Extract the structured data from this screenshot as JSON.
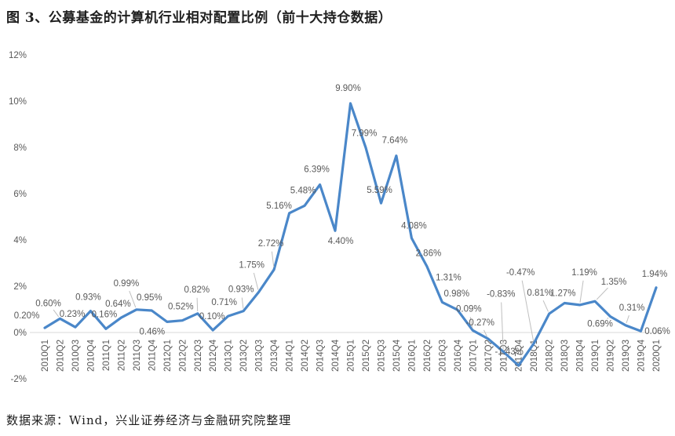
{
  "title": "图 3、公募基金的计算机行业相对配置比例（前十大持仓数据）",
  "source": "数据来源：Wind，兴业证券经济与金融研究院整理",
  "colors": {
    "line": "#4a87c9",
    "data_label": "#595959",
    "axis_label": "#595959",
    "gridline": "#d9d9d9",
    "leader": "#bfbfbf",
    "text": "#1f1f1f",
    "background": "#ffffff"
  },
  "chart_data": {
    "type": "line",
    "title": "图 3、公募基金的计算机行业相对配置比例（前十大持仓数据）",
    "categories": [
      "2010Q1",
      "2010Q2",
      "2010Q3",
      "2010Q4",
      "2011Q1",
      "2011Q2",
      "2011Q3",
      "2011Q4",
      "2012Q1",
      "2012Q2",
      "2012Q3",
      "2012Q4",
      "2013Q1",
      "2013Q2",
      "2013Q3",
      "2013Q4",
      "2014Q1",
      "2014Q2",
      "2014Q3",
      "2014Q4",
      "2015Q1",
      "2015Q2",
      "2015Q3",
      "2015Q4",
      "2016Q1",
      "2016Q2",
      "2016Q3",
      "2016Q4",
      "2017Q1",
      "2017Q2",
      "2017Q3",
      "2017Q4",
      "2018Q1",
      "2018Q2",
      "2018Q3",
      "2018Q4",
      "2019Q1",
      "2019Q2",
      "2019Q3",
      "2019Q4",
      "2020Q1"
    ],
    "values": [
      0.2,
      0.6,
      0.23,
      0.93,
      0.16,
      0.64,
      0.99,
      0.95,
      0.46,
      0.52,
      0.82,
      0.1,
      0.71,
      0.93,
      1.75,
      2.72,
      5.16,
      5.48,
      6.39,
      4.4,
      9.9,
      7.99,
      5.59,
      7.64,
      4.08,
      2.86,
      1.31,
      0.98,
      0.09,
      -0.27,
      -0.83,
      -1.43,
      -0.47,
      0.81,
      1.27,
      1.19,
      1.35,
      0.69,
      0.31,
      0.06,
      1.94
    ],
    "point_labels": [
      "0.20%",
      "0.60%",
      "0.23%",
      "0.93%",
      "0.16%",
      "0.64%",
      "0.99%",
      "0.95%",
      "0.46%",
      "0.52%",
      "0.82%",
      "0.10%",
      "0.71%",
      "0.93%",
      "1.75%",
      "2.72%",
      "5.16%",
      "5.48%",
      "6.39%",
      "4.40%",
      "9.90%",
      "7.99%",
      "5.59%",
      "7.64%",
      "4.08%",
      "2.86%",
      "1.31%",
      "0.98%",
      "0.09%",
      "-0.27%",
      "-0.83%",
      "-1.43%",
      "-0.47%",
      "0.81%",
      "1.27%",
      "1.19%",
      "1.35%",
      "0.69%",
      "0.31%",
      "0.06%",
      "1.94%"
    ],
    "xlabel": "",
    "ylabel": "",
    "ylim": [
      -2,
      12
    ],
    "yticks": [
      -2,
      0,
      2,
      4,
      6,
      8,
      10,
      12
    ],
    "ytick_labels": [
      "-2%",
      "0%",
      "2%",
      "4%",
      "6%",
      "8%",
      "10%",
      "12%"
    ],
    "grid": "zero-line-only",
    "legend": "none"
  }
}
